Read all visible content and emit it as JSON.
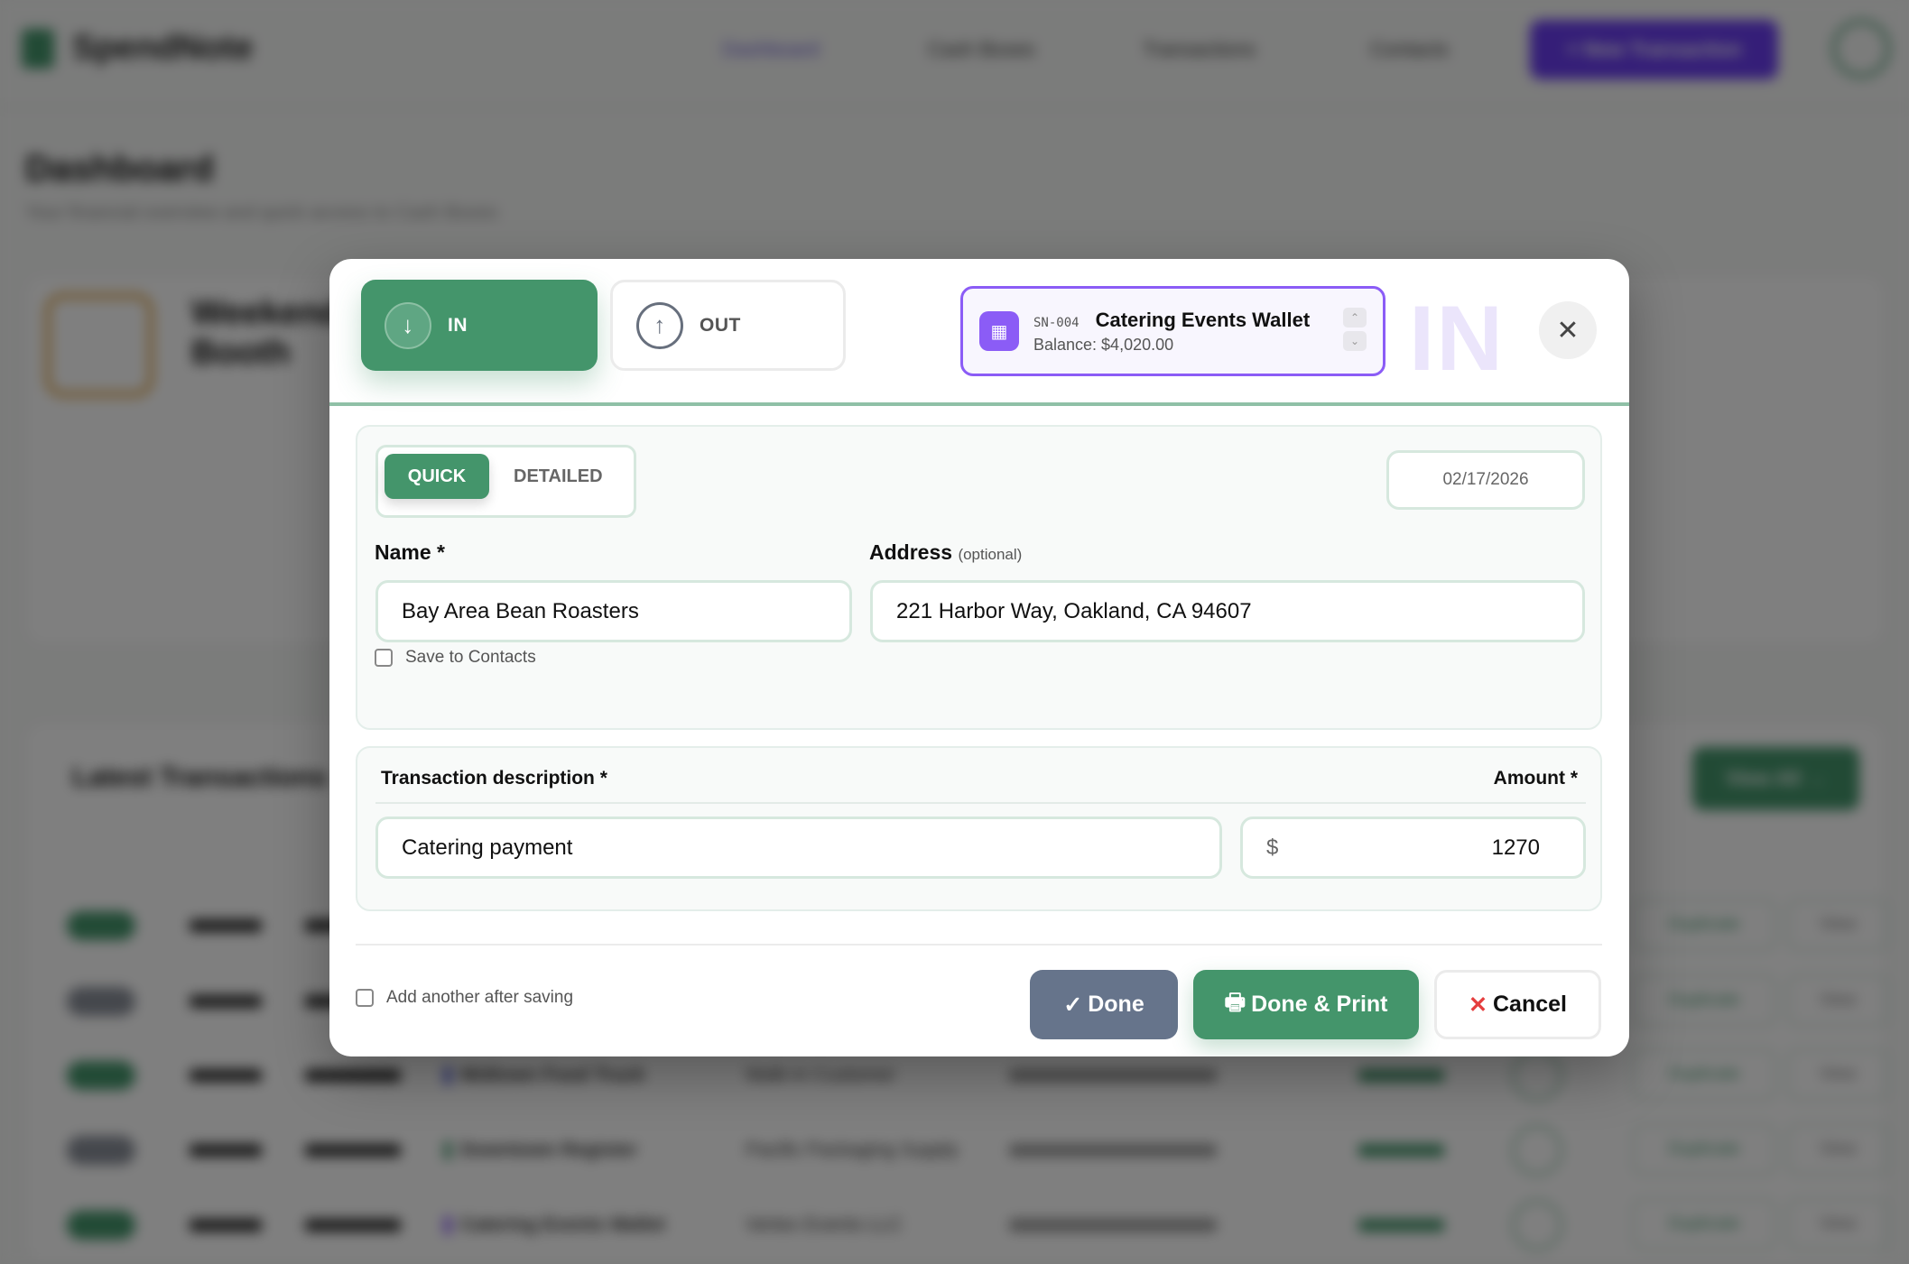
{
  "background": {
    "brand": "SpendNote",
    "nav": [
      "Dashboard",
      "Cash Boxes",
      "Transactions",
      "Contacts"
    ],
    "new_transaction": "+ New Transaction",
    "page_title": "Dashboard",
    "page_subtitle": "Your financial overview and quick access to Cash Boxes",
    "cashbox_name": "Weekend Booth",
    "latest_title": "Latest Transactions",
    "view_all": "View All →",
    "rows": [
      {
        "box": "Midtown Food Truck",
        "contact": "Walk-in Customer",
        "box_color": "#4f5bd5"
      },
      {
        "box": "Downtown Register",
        "contact": "Pacific Packaging Supply",
        "box_color": "#44956b"
      },
      {
        "box": "Catering Events Wallet",
        "contact": "Vertex Events LLC",
        "box_color": "#8b5cf6"
      }
    ],
    "duplicate_label": "Duplicate",
    "view_label": "View"
  },
  "modal": {
    "direction": {
      "in_label": "IN",
      "out_label": "OUT",
      "selected": "IN"
    },
    "wallet": {
      "id": "SN-004",
      "name": "Catering Events Wallet",
      "balance": "Balance: $4,020.00"
    },
    "watermark": "IN",
    "mode": {
      "quick": "QUICK",
      "detailed": "DETAILED",
      "selected": "QUICK"
    },
    "date": "02/17/2026",
    "name_label": "Name *",
    "name_value": "Bay Area Bean Roasters",
    "address_label": "Address",
    "address_optional": "(optional)",
    "address_value": "221 Harbor Way, Oakland, CA 94607",
    "save_contacts": "Save to Contacts",
    "desc_label": "Transaction description *",
    "amount_label": "Amount *",
    "desc_value": "Catering payment",
    "currency": "$",
    "amount_value": "1270",
    "add_another": "Add another after saving",
    "done": "Done",
    "done_print": "Done & Print",
    "cancel": "Cancel"
  },
  "colors": {
    "accent_green": "#44956b",
    "wallet_purple": "#8b5cf6",
    "done_slate": "#66748b",
    "cancel_red": "#e53e3e"
  }
}
